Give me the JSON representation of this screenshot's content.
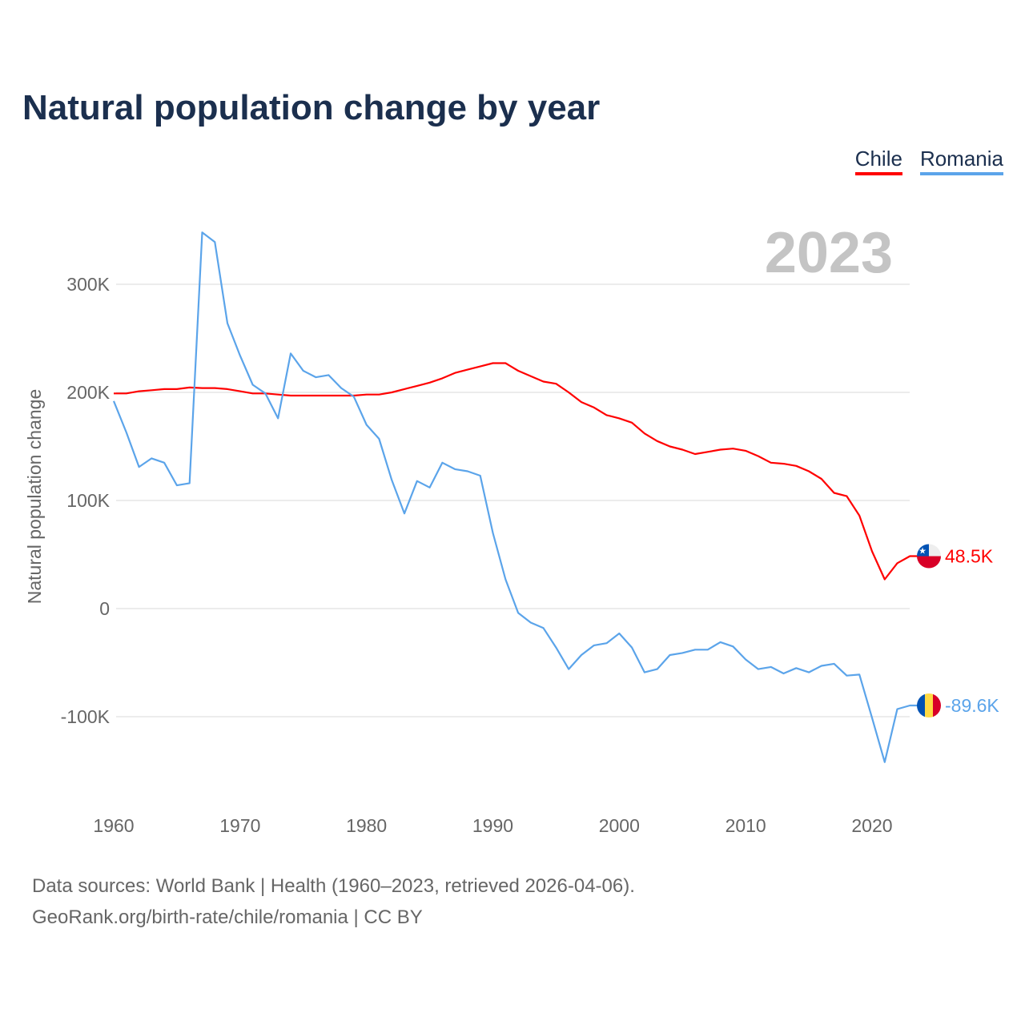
{
  "chart_data": {
    "type": "line",
    "title": "Natural population change by year",
    "xlabel": "",
    "ylabel": "Natural population change",
    "year_label": "2023",
    "xlim": [
      1960,
      2023
    ],
    "ylim": [
      -150,
      350
    ],
    "x_ticks": [
      1960,
      1970,
      1980,
      1990,
      2000,
      2010,
      2020
    ],
    "x_tick_labels": [
      "1960",
      "1970",
      "1980",
      "1990",
      "2000",
      "2010",
      "2020"
    ],
    "y_ticks": [
      -100,
      0,
      100,
      200,
      300
    ],
    "y_tick_labels": [
      "-100K",
      "0",
      "100K",
      "200K",
      "300K"
    ],
    "grid": true,
    "legend_placement": "top-right",
    "x_start": 1960,
    "series": [
      {
        "name": "Chile",
        "color": "#ff0000",
        "end_label": "48.5K",
        "flag": "chile-flag",
        "values": [
          199,
          199,
          201,
          202,
          203,
          203,
          204.5,
          204,
          204,
          203,
          201,
          199,
          199,
          198,
          197,
          197,
          197,
          197,
          197,
          197,
          198,
          198,
          200,
          203,
          206,
          209,
          213,
          218,
          221,
          224,
          227,
          227,
          220,
          215,
          210,
          208,
          200,
          191,
          186,
          179,
          176,
          172,
          162,
          155,
          150,
          147,
          143,
          145,
          147,
          148,
          146,
          141,
          135,
          134,
          132,
          127,
          120,
          107,
          104,
          86,
          53,
          27,
          42,
          48.5
        ]
      },
      {
        "name": "Romania",
        "color": "#5ba4ea",
        "end_label": "-89.6K",
        "flag": "romania-flag",
        "values": [
          192,
          163,
          131,
          139,
          135,
          114,
          116,
          348,
          339,
          264,
          234,
          207,
          199,
          176,
          236,
          220,
          214,
          216,
          204,
          196,
          170,
          157,
          119,
          88,
          118,
          112,
          135,
          129,
          127,
          123,
          70,
          27,
          -4,
          -13,
          -18,
          -36,
          -56,
          -43,
          -34,
          -32,
          -23,
          -36,
          -59,
          -56,
          -43,
          -41,
          -38,
          -38,
          -31,
          -35,
          -47,
          -56,
          -54,
          -60,
          -55,
          -59,
          -53,
          -51,
          -62,
          -61,
          -101,
          -142,
          -93,
          -89.6
        ]
      }
    ]
  },
  "footer": {
    "line1": "Data sources: World Bank | Health (1960–2023, retrieved 2026-04-06).",
    "line2": "GeoRank.org/birth-rate/chile/romania | CC BY"
  }
}
